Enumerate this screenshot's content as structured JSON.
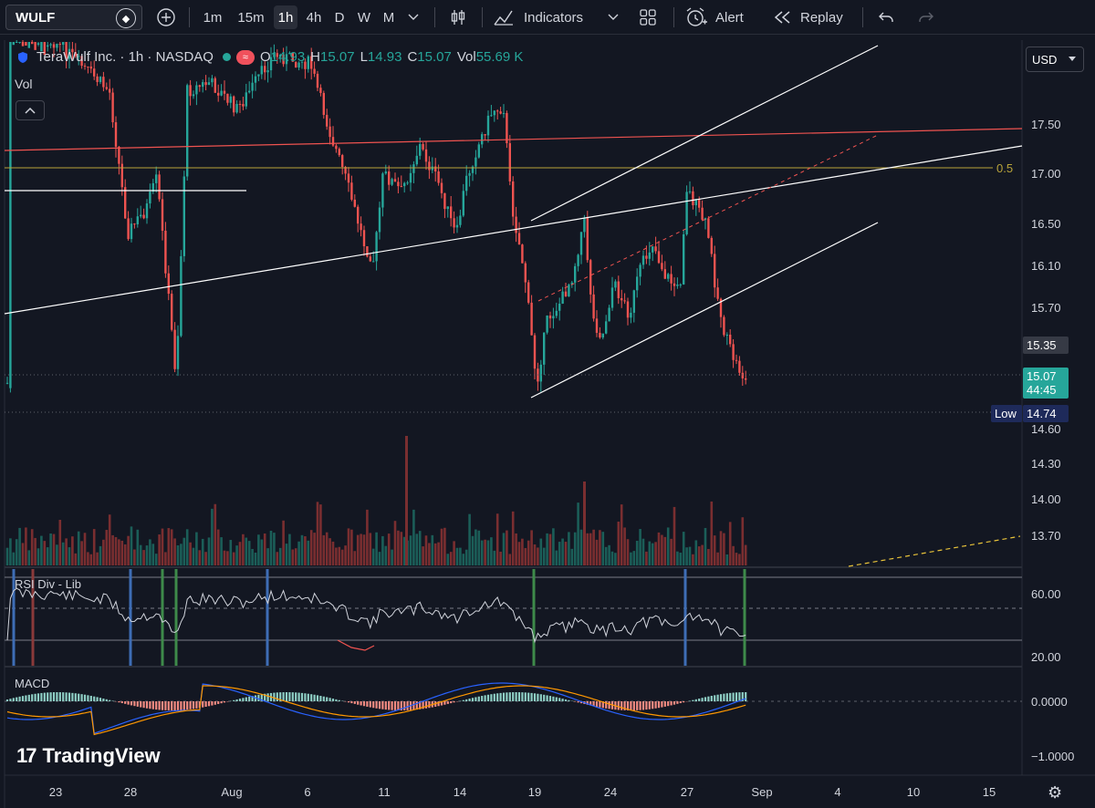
{
  "toolbar": {
    "symbol": "WULF",
    "intervals": [
      "1m",
      "15m",
      "1h",
      "4h",
      "D",
      "W",
      "M"
    ],
    "active_interval": "1h",
    "indicators_label": "Indicators",
    "alert_label": "Alert",
    "replay_label": "Replay"
  },
  "legend": {
    "title": "TeraWulf Inc. · 1h · NASDAQ",
    "o_label": "O",
    "o": "14.93",
    "h_label": "H",
    "h": "15.07",
    "l_label": "L",
    "l": "14.93",
    "c_label": "C",
    "c": "15.07",
    "vol_label": "Vol",
    "vol": "55.69 K",
    "vol_pane": "Vol"
  },
  "currency": "USD",
  "price_axis": [
    "17.50",
    "17.00",
    "16.50",
    "16.10",
    "15.70",
    "14.60",
    "14.30",
    "14.00",
    "13.70"
  ],
  "tags": {
    "p1": "15.35",
    "last": "15.07",
    "countdown": "44:45",
    "low_label": "Low",
    "low": "14.74",
    "fib": "0.5"
  },
  "rsi": {
    "title": "RSI Div - Lib",
    "axis": [
      "60.00",
      "20.00"
    ]
  },
  "macd": {
    "title": "MACD",
    "axis": [
      "0.0000",
      "−1.0000"
    ]
  },
  "time_axis": [
    "23",
    "28",
    "Aug",
    "6",
    "11",
    "14",
    "19",
    "24",
    "27",
    "Sep",
    "4",
    "10",
    "15"
  ],
  "branding": "TradingView",
  "colors": {
    "up": "#26a69a",
    "down": "#ef5350",
    "bg": "#131722"
  }
}
